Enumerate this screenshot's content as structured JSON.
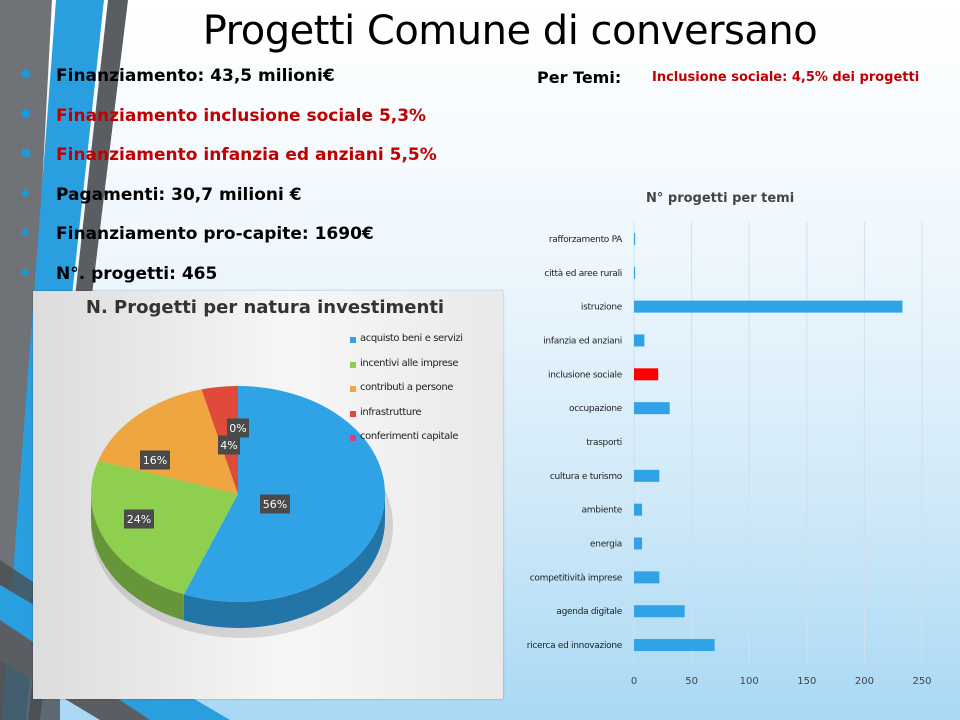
{
  "slide": {
    "title": "Progetti Comune di conversano",
    "bullets": [
      {
        "text": "Finanziamento:  43,5 milioni€",
        "color": "#000000",
        "marker": "square"
      },
      {
        "text": "Finanziamento  inclusione sociale 5,3%",
        "color": "#c00000",
        "marker": "square"
      },
      {
        "text": "Finanziamento  infanzia ed anziani  5,5%",
        "color": "#c00000",
        "marker": "square"
      },
      {
        "text": "Pagamenti:  30,7 milioni €",
        "color": "#000000",
        "marker": "diamond"
      },
      {
        "text": "Finanziamento  pro-capite:  1690€",
        "color": "#000000",
        "marker": "diamond"
      },
      {
        "text": "N°. progetti:  465",
        "color": "#000000",
        "marker": "diamond"
      }
    ],
    "temi_label": "Per Temi:",
    "temi_value": "Inclusione sociale: 4,5% dei progetti",
    "accent": "#1a9ad6"
  },
  "chart_data": [
    {
      "type": "pie",
      "title": "N. Progetti per natura investimenti",
      "legend_position": "top-right",
      "slices": [
        {
          "label": "acquisto beni  e servizi",
          "value": 56,
          "data_label": "56%",
          "color": "#2fa3e6"
        },
        {
          "label": "incentivi alle imprese",
          "value": 24,
          "data_label": "24%",
          "color": "#8fcf4f"
        },
        {
          "label": "contributi a persone",
          "value": 16,
          "data_label": "16%",
          "color": "#f0a640"
        },
        {
          "label": "infrastrutture",
          "value": 4,
          "data_label": "4%",
          "color": "#e04a3a"
        },
        {
          "label": "conferimenti capitale",
          "value": 0,
          "data_label": "0%",
          "color": "#d94078"
        }
      ]
    },
    {
      "type": "bar",
      "orientation": "horizontal",
      "title": "N° progetti per temi",
      "categories": [
        "rafforzamento PA",
        "città ed aree rurali",
        "istruzione",
        "infanzia ed anziani",
        "inclusione sociale",
        "occupazione",
        "trasporti",
        "cultura e turismo",
        "ambiente",
        "energia",
        "competitività imprese",
        "agenda digitale",
        "ricerca ed innovazione"
      ],
      "values": [
        1,
        1,
        233,
        9,
        21,
        31,
        0,
        22,
        7,
        7,
        22,
        44,
        70
      ],
      "highlight_index": 4,
      "bar_color": "#2fa3e6",
      "highlight_color": "#ff0000",
      "xlim": [
        0,
        250
      ],
      "xticks": [
        0,
        50,
        100,
        150,
        200,
        250
      ],
      "grid": true
    }
  ]
}
